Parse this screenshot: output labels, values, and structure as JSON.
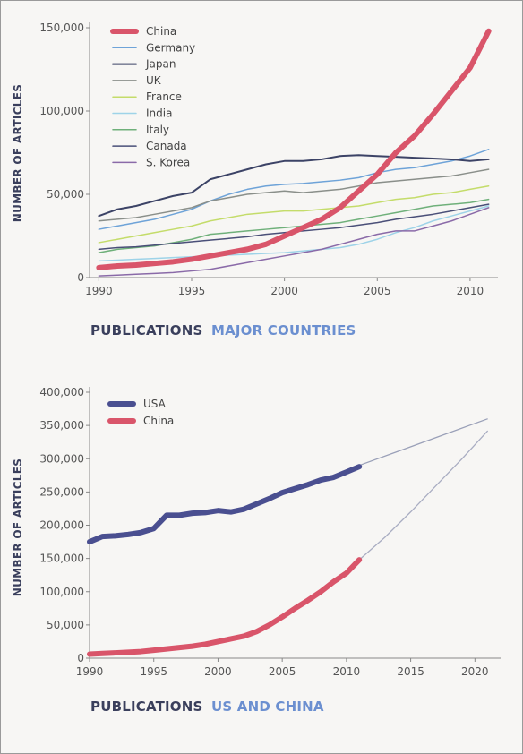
{
  "chart_data": [
    {
      "type": "line",
      "title_prefix": "PUBLICATIONS",
      "title_suffix": "MAJOR COUNTRIES",
      "ylabel": "NUMBER OF ARTICLES",
      "xlabel": "",
      "xlim": [
        1989.5,
        2011.5
      ],
      "ylim": [
        0,
        150000
      ],
      "x_ticks": [
        1990,
        1995,
        2000,
        2005,
        2010
      ],
      "y_ticks": [
        0,
        50000,
        100000,
        150000
      ],
      "y_tick_labels": [
        "0",
        "50,000",
        "100,000",
        "150,000"
      ],
      "grid": false,
      "legend_position": "top-left",
      "x": [
        1990,
        1991,
        1992,
        1993,
        1994,
        1995,
        1996,
        1997,
        1998,
        1999,
        2000,
        2001,
        2002,
        2003,
        2004,
        2005,
        2006,
        2007,
        2008,
        2009,
        2010,
        2011
      ],
      "series": [
        {
          "name": "China",
          "color": "#d9556a",
          "width": 6,
          "values": [
            6000,
            7000,
            7500,
            8500,
            9500,
            11000,
            13000,
            15000,
            17000,
            20000,
            25000,
            30000,
            35000,
            42000,
            52000,
            62000,
            75000,
            85000,
            98000,
            112000,
            126000,
            148000
          ]
        },
        {
          "name": "Germany",
          "color": "#6ea3d8",
          "width": 1.5,
          "values": [
            29000,
            31000,
            33000,
            35000,
            38000,
            41000,
            46000,
            50000,
            53000,
            55000,
            56000,
            56500,
            57500,
            58500,
            60000,
            63000,
            65000,
            66000,
            68000,
            70000,
            73000,
            77000
          ]
        },
        {
          "name": "Japan",
          "color": "#3c4366",
          "width": 2,
          "values": [
            37000,
            41000,
            43000,
            46000,
            49000,
            51000,
            59000,
            62000,
            65000,
            68000,
            70000,
            70000,
            71000,
            73000,
            73500,
            73000,
            72500,
            72000,
            71500,
            71000,
            70000,
            71000
          ]
        },
        {
          "name": "UK",
          "color": "#8a8f8a",
          "width": 1.5,
          "values": [
            34000,
            35000,
            36000,
            38000,
            40000,
            42000,
            46000,
            48000,
            50000,
            51000,
            52000,
            51000,
            52000,
            53000,
            55000,
            57000,
            58000,
            59000,
            60000,
            61000,
            63000,
            65000
          ]
        },
        {
          "name": "France",
          "color": "#c4dc6a",
          "width": 1.5,
          "values": [
            21000,
            23000,
            25000,
            27000,
            29000,
            31000,
            34000,
            36000,
            38000,
            39000,
            40000,
            40000,
            41000,
            42000,
            43000,
            45000,
            47000,
            48000,
            50000,
            51000,
            53000,
            55000
          ]
        },
        {
          "name": "India",
          "color": "#9ed3e8",
          "width": 1.5,
          "values": [
            10000,
            10500,
            11000,
            11500,
            12000,
            12500,
            13000,
            13500,
            14000,
            14500,
            15000,
            16000,
            17000,
            18000,
            20000,
            23000,
            27000,
            30000,
            34000,
            37000,
            40000,
            43000
          ]
        },
        {
          "name": "Italy",
          "color": "#6fb07a",
          "width": 1.5,
          "values": [
            15000,
            17000,
            18000,
            19000,
            21000,
            23000,
            26000,
            27000,
            28000,
            29000,
            30000,
            31000,
            32000,
            33000,
            35000,
            37000,
            39000,
            41000,
            43000,
            44000,
            45000,
            47000
          ]
        },
        {
          "name": "Canada",
          "color": "#4a4f78",
          "width": 1.5,
          "values": [
            17000,
            18000,
            18500,
            19500,
            20500,
            21500,
            22500,
            23500,
            24500,
            26000,
            27000,
            28000,
            29000,
            30000,
            31500,
            33000,
            35000,
            36500,
            38000,
            40000,
            42000,
            44000
          ]
        },
        {
          "name": "S. Korea",
          "color": "#8a6aa8",
          "width": 1.5,
          "values": [
            1000,
            1500,
            2000,
            2500,
            3000,
            4000,
            5000,
            7000,
            9000,
            11000,
            13000,
            15000,
            17000,
            20000,
            23000,
            26000,
            28000,
            28000,
            31000,
            34000,
            38000,
            42000
          ]
        }
      ]
    },
    {
      "type": "line",
      "title_prefix": "PUBLICATIONS",
      "title_suffix": "US AND CHINA",
      "ylabel": "NUMBER OF ARTICLES",
      "xlabel": "",
      "xlim": [
        1990,
        2022
      ],
      "ylim": [
        0,
        400000
      ],
      "x_ticks": [
        1990,
        1995,
        2000,
        2005,
        2010,
        2015,
        2020
      ],
      "y_ticks": [
        0,
        50000,
        100000,
        150000,
        200000,
        250000,
        300000,
        350000,
        400000
      ],
      "y_tick_labels": [
        "0",
        "50,000",
        "100,000",
        "150,000",
        "200,000",
        "250,000",
        "300,000",
        "350,000",
        "400,000"
      ],
      "grid": false,
      "legend_position": "top-left",
      "x": [
        1990,
        1991,
        1992,
        1993,
        1994,
        1995,
        1996,
        1997,
        1998,
        1999,
        2000,
        2001,
        2002,
        2003,
        2004,
        2005,
        2006,
        2007,
        2008,
        2009,
        2010,
        2011
      ],
      "series": [
        {
          "name": "USA",
          "color": "#4a4f90",
          "width": 6,
          "values": [
            175000,
            183000,
            184000,
            186000,
            189000,
            195000,
            215000,
            215000,
            218000,
            219000,
            222000,
            220000,
            224000,
            232000,
            240000,
            249000,
            255000,
            261000,
            268000,
            272000,
            280000,
            288000
          ]
        },
        {
          "name": "China",
          "color": "#d9556a",
          "width": 6,
          "values": [
            6000,
            7000,
            8000,
            9000,
            10000,
            12000,
            14000,
            16000,
            18000,
            21000,
            25000,
            29000,
            33000,
            40000,
            50000,
            62000,
            75000,
            87000,
            100000,
            115000,
            128000,
            148000
          ]
        }
      ],
      "projections": [
        {
          "color": "#9aa0b8",
          "x": [
            2003,
            2005,
            2008,
            2011,
            2014,
            2017,
            2021
          ],
          "values": [
            233000,
            248000,
            268000,
            290000,
            311000,
            332000,
            360000
          ]
        },
        {
          "color": "#a9adc2",
          "x": [
            2011,
            2013,
            2015,
            2017,
            2019,
            2021
          ],
          "values": [
            148000,
            182000,
            220000,
            260000,
            300000,
            342000
          ]
        }
      ]
    }
  ]
}
